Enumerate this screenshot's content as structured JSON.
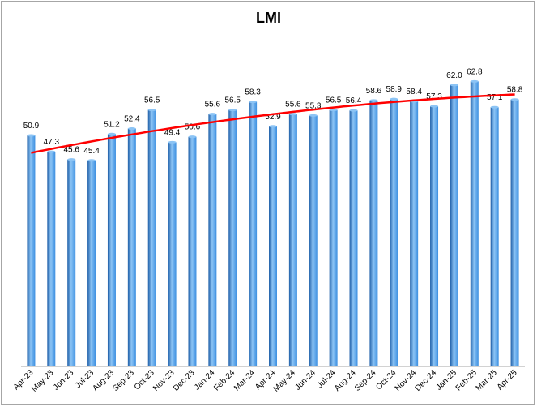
{
  "chart_data": {
    "type": "bar",
    "title": "LMI",
    "xlabel": "",
    "ylabel": "",
    "ylim": [
      0,
      70
    ],
    "grid": false,
    "legend": "none",
    "categories": [
      "Apr-23",
      "May-23",
      "Jun-23",
      "Jul-23",
      "Aug-23",
      "Sep-23",
      "Oct-23",
      "Nov-23",
      "Dec-23",
      "Jan-24",
      "Feb-24",
      "Mar-24",
      "Apr-24",
      "May-24",
      "Jun-24",
      "Jul-24",
      "Aug-24",
      "Sep-24",
      "Oct-24",
      "Nov-24",
      "Dec-24",
      "Jan-25",
      "Feb-25",
      "Mar-25",
      "Apr-25"
    ],
    "values": [
      50.9,
      47.3,
      45.6,
      45.4,
      51.2,
      52.4,
      56.5,
      49.4,
      50.6,
      55.6,
      56.5,
      58.3,
      52.9,
      55.6,
      55.3,
      56.5,
      56.4,
      58.6,
      58.9,
      58.4,
      57.3,
      62.0,
      62.8,
      57.1,
      58.8
    ],
    "value_labels": [
      "50.9",
      "47.3",
      "45.6",
      "45.4",
      "51.2",
      "52.4",
      "56.5",
      "49.4",
      "50.6",
      "55.6",
      "56.5",
      "58.3",
      "52.9",
      "55.6",
      "55.3",
      "56.5",
      "56.4",
      "58.6",
      "58.9",
      "58.4",
      "57.3",
      "62.0",
      "62.8",
      "57.1",
      "58.8"
    ],
    "trendline": {
      "type": "polynomial",
      "color": "#ff0000"
    },
    "colors": {
      "bar": "#3d8fe0",
      "bar_dark": "#1f5fa8",
      "bar_light": "#8cc4f5",
      "axis": "#a6a6a6"
    }
  }
}
